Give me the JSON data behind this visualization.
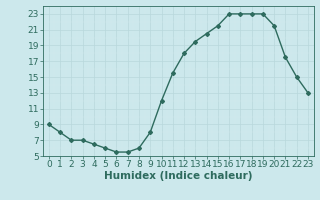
{
  "x": [
    0,
    1,
    2,
    3,
    4,
    5,
    6,
    7,
    8,
    9,
    10,
    11,
    12,
    13,
    14,
    15,
    16,
    17,
    18,
    19,
    20,
    21,
    22,
    23
  ],
  "y": [
    9,
    8,
    7,
    7,
    6.5,
    6,
    5.5,
    5.5,
    6,
    8,
    12,
    15.5,
    18,
    19.5,
    20.5,
    21.5,
    23,
    23,
    23,
    23,
    21.5,
    17.5,
    15,
    13
  ],
  "line_color": "#2e6b5e",
  "marker": "D",
  "marker_size": 2.0,
  "bg_color": "#cce8ec",
  "grid_major_color": "#b8d8dc",
  "grid_minor_color": "#d4e8ec",
  "xlabel": "Humidex (Indice chaleur)",
  "ylim": [
    5,
    24
  ],
  "xlim": [
    -0.5,
    23.5
  ],
  "yticks": [
    5,
    7,
    9,
    11,
    13,
    15,
    17,
    19,
    21,
    23
  ],
  "xticks": [
    0,
    1,
    2,
    3,
    4,
    5,
    6,
    7,
    8,
    9,
    10,
    11,
    12,
    13,
    14,
    15,
    16,
    17,
    18,
    19,
    20,
    21,
    22,
    23
  ],
  "tick_fontsize": 6.5,
  "xlabel_fontsize": 7.5,
  "linewidth": 1.0
}
